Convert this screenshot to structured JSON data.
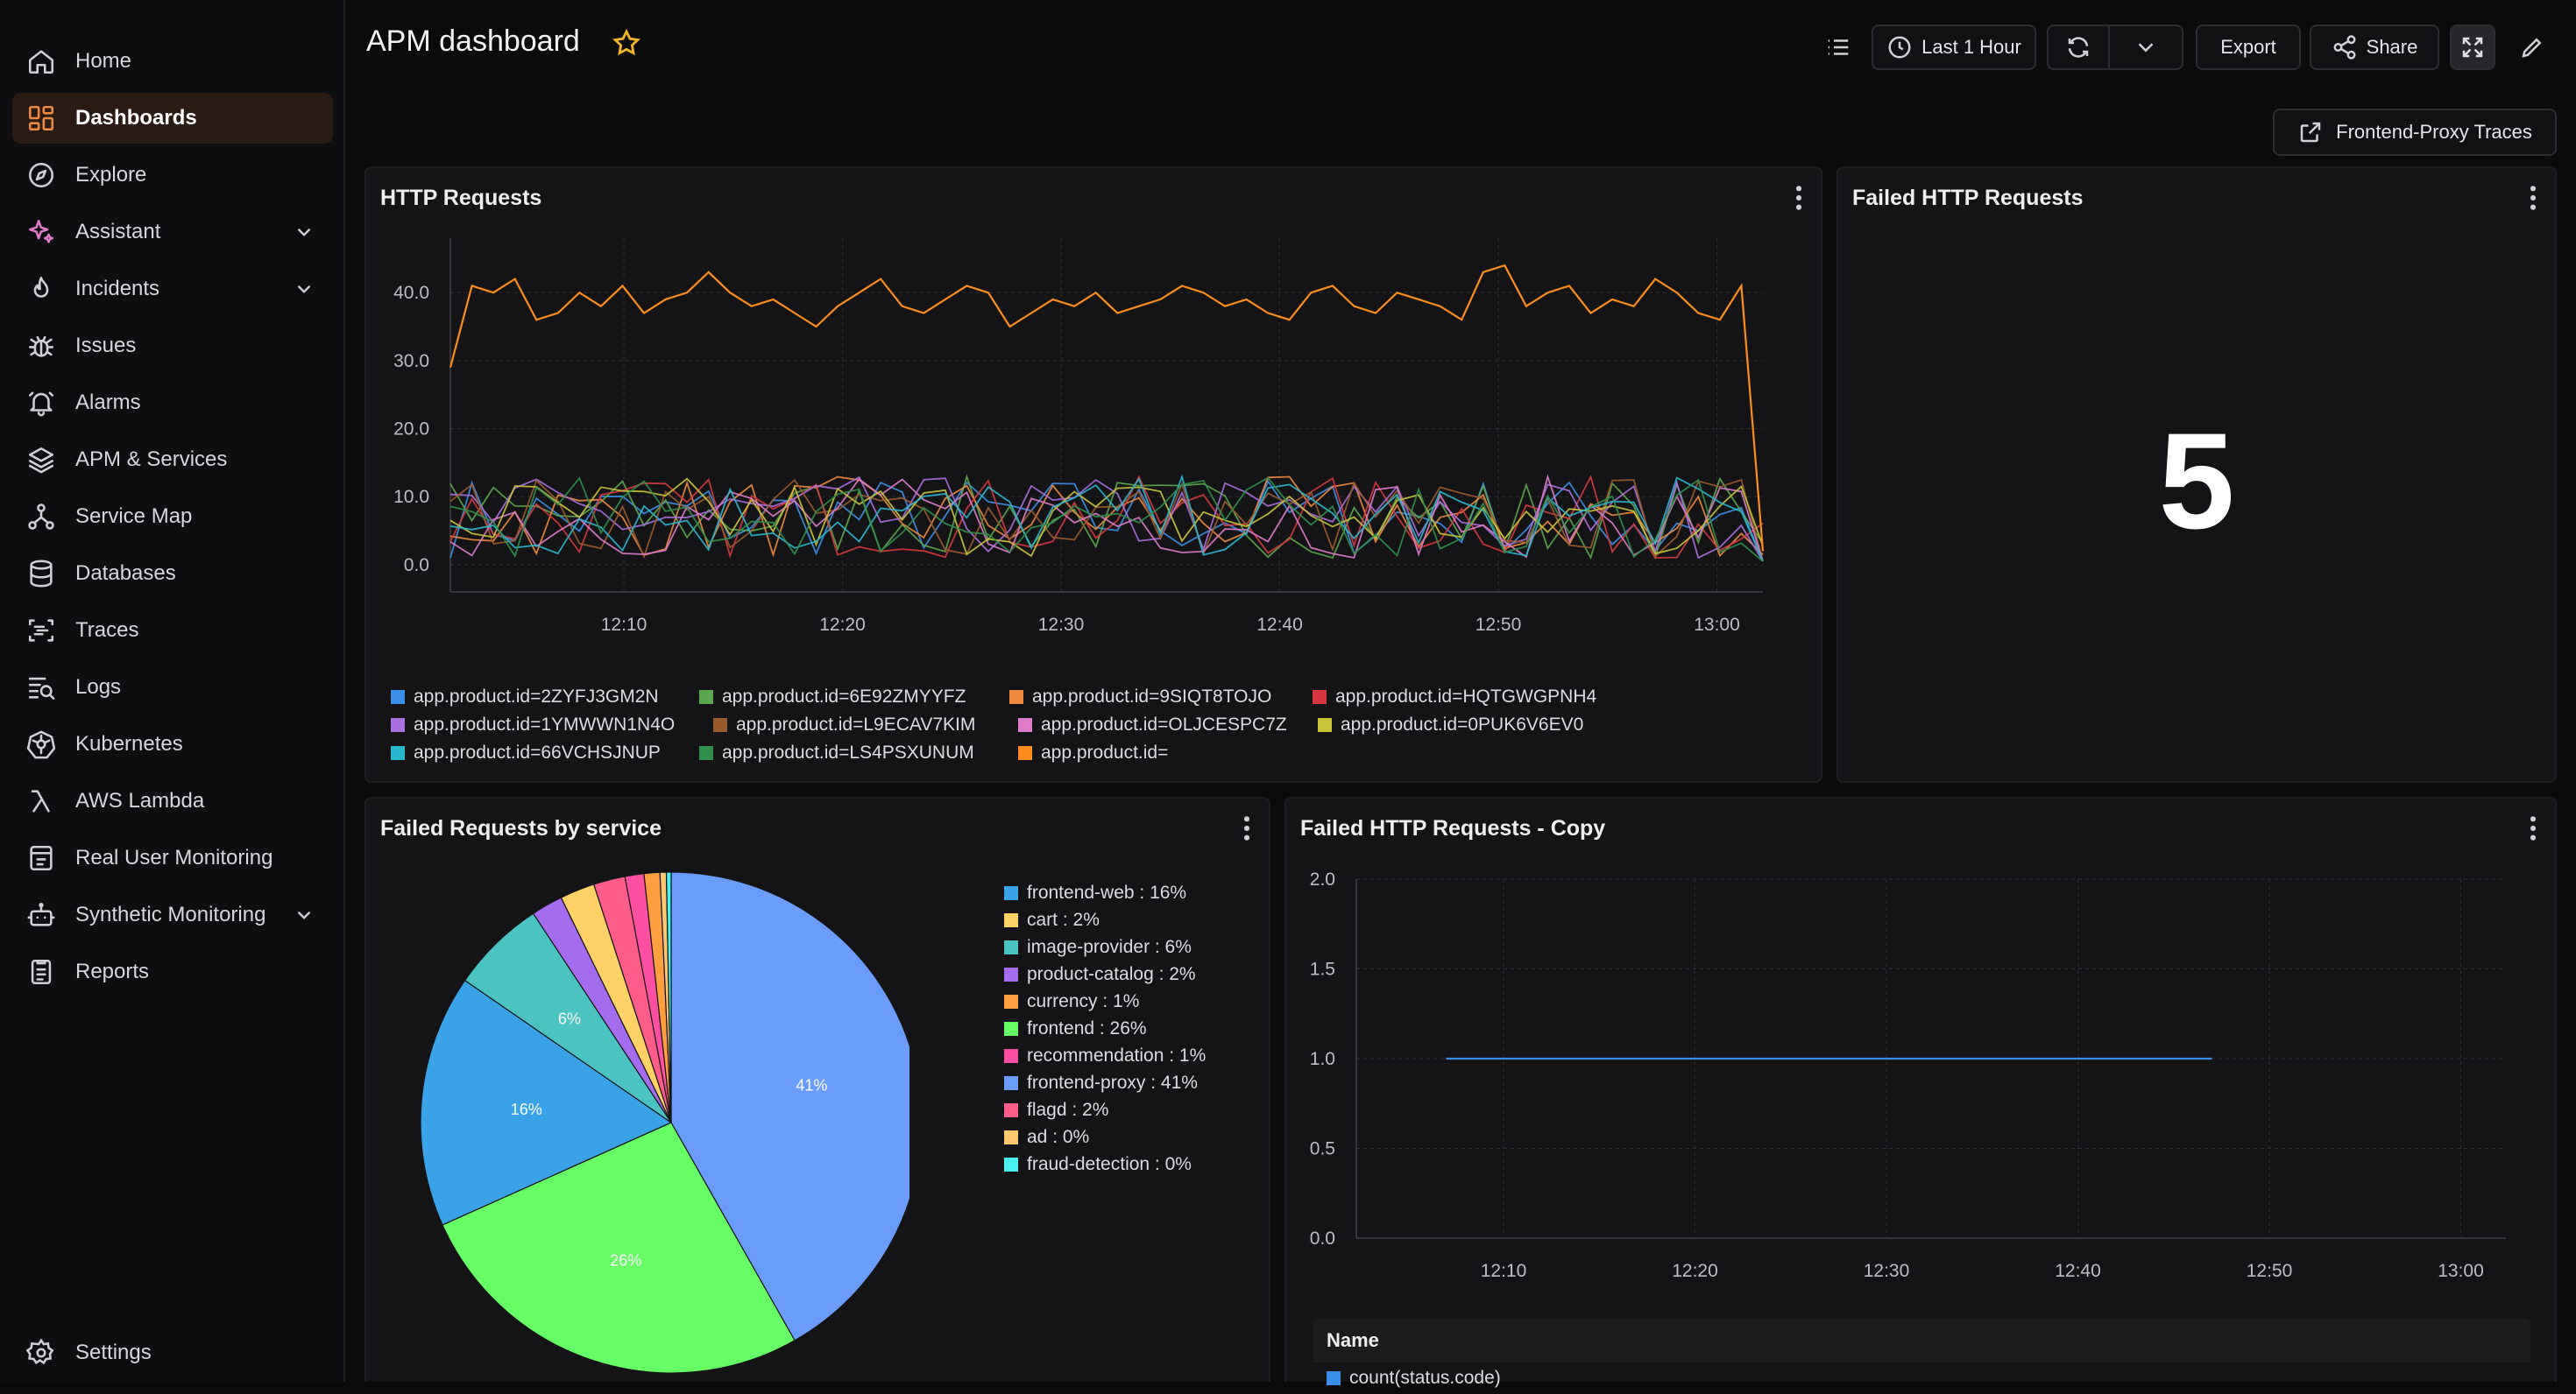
{
  "sidebar": {
    "items": [
      {
        "label": "Home",
        "icon": "home-icon"
      },
      {
        "label": "Dashboards",
        "icon": "dashboard-grid-icon",
        "active": true
      },
      {
        "label": "Explore",
        "icon": "compass-icon"
      },
      {
        "label": "Assistant",
        "icon": "sparkle-icon",
        "expandable": true
      },
      {
        "label": "Incidents",
        "icon": "flame-icon",
        "expandable": true
      },
      {
        "label": "Issues",
        "icon": "bug-icon"
      },
      {
        "label": "Alarms",
        "icon": "bell-icon"
      },
      {
        "label": "APM & Services",
        "icon": "layers-icon"
      },
      {
        "label": "Service Map",
        "icon": "network-icon"
      },
      {
        "label": "Databases",
        "icon": "database-icon"
      },
      {
        "label": "Traces",
        "icon": "traces-icon"
      },
      {
        "label": "Logs",
        "icon": "logs-search-icon"
      },
      {
        "label": "Kubernetes",
        "icon": "kubernetes-icon"
      },
      {
        "label": "AWS Lambda",
        "icon": "lambda-icon"
      },
      {
        "label": "Real User Monitoring",
        "icon": "rum-icon"
      },
      {
        "label": "Synthetic Monitoring",
        "icon": "robot-icon",
        "expandable": true
      },
      {
        "label": "Reports",
        "icon": "reports-icon"
      }
    ],
    "settings": {
      "label": "Settings",
      "icon": "gear-icon"
    }
  },
  "header": {
    "title": "APM dashboard",
    "time_range": "Last 1 Hour",
    "export_label": "Export",
    "share_label": "Share",
    "traces_link": "Frontend-Proxy Traces"
  },
  "colors": {
    "accent": "#f0883e",
    "active_bg": "#2a1c14",
    "panel_bg": "#141416"
  },
  "panels": {
    "http_requests": {
      "title": "HTTP Requests"
    },
    "failed_http": {
      "title": "Failed HTTP Requests",
      "value": "5"
    },
    "failed_by_service": {
      "title": "Failed Requests by service"
    },
    "failed_copy": {
      "title": "Failed HTTP Requests - Copy",
      "table_header": "Name",
      "table_row": "count(status.code)"
    }
  },
  "chart_data": [
    {
      "type": "line",
      "title": "HTTP Requests",
      "x_ticks": [
        "12:10",
        "12:20",
        "12:30",
        "12:40",
        "12:50",
        "13:00"
      ],
      "y_ticks": [
        "0.0",
        "10.0",
        "20.0",
        "30.0",
        "40.0"
      ],
      "ylim": [
        -4,
        48
      ],
      "legend": [
        {
          "name": "app.product.id=2ZYFJ3GM2N",
          "color": "#3b8fe8"
        },
        {
          "name": "app.product.id=6E92ZMYYFZ",
          "color": "#5aa64c"
        },
        {
          "name": "app.product.id=9SIQT8TOJO",
          "color": "#f0883e"
        },
        {
          "name": "app.product.id=HQTGWGPNH4",
          "color": "#d8363f"
        },
        {
          "name": "app.product.id=1YMWWN1N4O",
          "color": "#a86ee0"
        },
        {
          "name": "app.product.id=L9ECAV7KIM",
          "color": "#9b5a2e"
        },
        {
          "name": "app.product.id=OLJCESPC7Z",
          "color": "#e07acb"
        },
        {
          "name": "app.product.id=0PUK6V6EV0",
          "color": "#c8c53a"
        },
        {
          "name": "app.product.id=66VCHSJNUP",
          "color": "#27b8cf"
        },
        {
          "name": "app.product.id=LS4PSXUNUM",
          "color": "#2f8f4a"
        },
        {
          "name": "app.product.id=",
          "color": "#ff8c1a"
        }
      ],
      "main_series_color": "#ff8c1a",
      "main_series": [
        29,
        41,
        40,
        42,
        36,
        37,
        40,
        38,
        41,
        37,
        39,
        40,
        43,
        40,
        38,
        39,
        37,
        35,
        38,
        40,
        42,
        38,
        37,
        39,
        41,
        40,
        35,
        37,
        39,
        38,
        40,
        37,
        38,
        39,
        41,
        40,
        38,
        39,
        37,
        36,
        40,
        41,
        38,
        37,
        40,
        39,
        38,
        36,
        43,
        44,
        38,
        40,
        41,
        37,
        39,
        38,
        42,
        40,
        37,
        36,
        41,
        2
      ],
      "noise_series_count": 10,
      "noise_range": [
        1,
        17
      ]
    },
    {
      "type": "pie",
      "title": "Failed Requests by service",
      "slices": [
        {
          "name": "frontend-proxy",
          "pct": 41,
          "color": "#6a9cfc",
          "label": "41%"
        },
        {
          "name": "frontend",
          "pct": 26,
          "color": "#66ff66",
          "label": "26%"
        },
        {
          "name": "frontend-web",
          "pct": 16,
          "color": "#3aa3e8",
          "label": "16%"
        },
        {
          "name": "image-provider",
          "pct": 6,
          "color": "#4cc3c3",
          "label": "6%"
        },
        {
          "name": "product-catalog",
          "pct": 2,
          "color": "#a66cf0",
          "label": ""
        },
        {
          "name": "cart",
          "pct": 2,
          "color": "#ffd166",
          "label": ""
        },
        {
          "name": "flagd",
          "pct": 2,
          "color": "#ff5c8a",
          "label": ""
        },
        {
          "name": "recommendation",
          "pct": 1,
          "color": "#ff4fa3",
          "label": ""
        },
        {
          "name": "currency",
          "pct": 1,
          "color": "#ff9f40",
          "label": ""
        },
        {
          "name": "ad",
          "pct": 0,
          "color": "#ffc870",
          "label": ""
        },
        {
          "name": "fraud-detection",
          "pct": 0,
          "color": "#4af0f0",
          "label": ""
        }
      ],
      "legend": [
        {
          "text": "frontend-web : 16%",
          "color": "#3aa3e8"
        },
        {
          "text": "cart : 2%",
          "color": "#ffd166"
        },
        {
          "text": "image-provider : 6%",
          "color": "#4cc3c3"
        },
        {
          "text": "product-catalog : 2%",
          "color": "#a66cf0"
        },
        {
          "text": "currency : 1%",
          "color": "#ff9f40"
        },
        {
          "text": "frontend : 26%",
          "color": "#66ff66"
        },
        {
          "text": "recommendation : 1%",
          "color": "#ff4fa3"
        },
        {
          "text": "frontend-proxy : 41%",
          "color": "#6a9cfc"
        },
        {
          "text": "flagd : 2%",
          "color": "#ff5c8a"
        },
        {
          "text": "ad : 0%",
          "color": "#ffc870"
        },
        {
          "text": "fraud-detection : 0%",
          "color": "#4af0f0"
        }
      ]
    },
    {
      "type": "line",
      "title": "Failed HTTP Requests - Copy",
      "x_ticks": [
        "12:10",
        "12:20",
        "12:30",
        "12:40",
        "12:50",
        "13:00"
      ],
      "y_ticks": [
        "0.0",
        "0.5",
        "1.0",
        "1.5",
        "2.0"
      ],
      "ylim": [
        0,
        2
      ],
      "series": [
        {
          "name": "count(status.code)",
          "color": "#3b8fe8",
          "x_start": "12:07",
          "x_end": "12:47",
          "value": 1.0
        }
      ]
    }
  ]
}
